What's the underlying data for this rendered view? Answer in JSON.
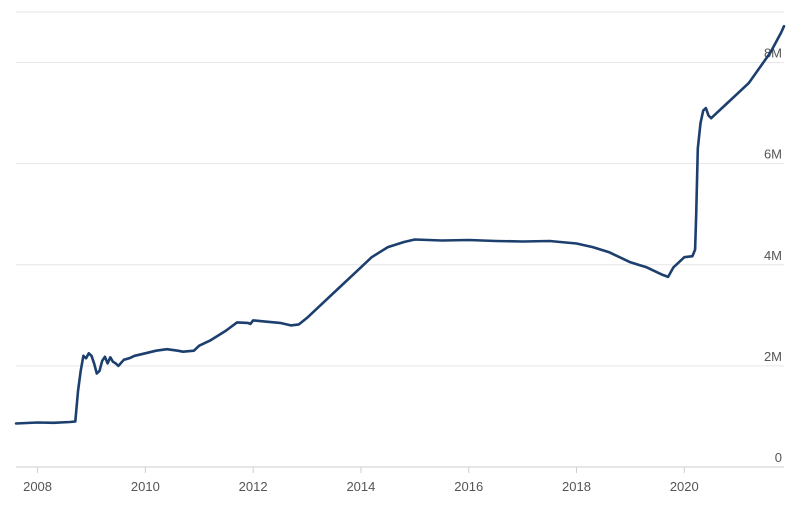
{
  "chart_data": {
    "type": "line",
    "title": "",
    "xlabel": "",
    "ylabel": "",
    "xlim": [
      2007.6,
      2021.85
    ],
    "ylim": [
      0,
      9000000
    ],
    "grid": true,
    "x_ticks": [
      {
        "value": 2008,
        "label": "2008"
      },
      {
        "value": 2010,
        "label": "2010"
      },
      {
        "value": 2012,
        "label": "2012"
      },
      {
        "value": 2014,
        "label": "2014"
      },
      {
        "value": 2016,
        "label": "2016"
      },
      {
        "value": 2018,
        "label": "2018"
      },
      {
        "value": 2020,
        "label": "2020"
      }
    ],
    "y_ticks": [
      {
        "value": 0,
        "label": "0"
      },
      {
        "value": 2000000,
        "label": "2M"
      },
      {
        "value": 4000000,
        "label": "4M"
      },
      {
        "value": 6000000,
        "label": "6M"
      },
      {
        "value": 8000000,
        "label": "8M"
      }
    ],
    "colors": {
      "line": "#1d3f6e"
    },
    "series": [
      {
        "x": [
          2007.6,
          2008.0,
          2008.3,
          2008.6,
          2008.7,
          2008.75,
          2008.8,
          2008.85,
          2008.9,
          2008.95,
          2009.0,
          2009.05,
          2009.1,
          2009.15,
          2009.2,
          2009.25,
          2009.3,
          2009.35,
          2009.4,
          2009.45,
          2009.5,
          2009.6,
          2009.7,
          2009.8,
          2010.0,
          2010.2,
          2010.4,
          2010.6,
          2010.7,
          2010.9,
          2011.0,
          2011.2,
          2011.5,
          2011.7,
          2011.9,
          2011.95,
          2012.0,
          2012.2,
          2012.5,
          2012.7,
          2012.85,
          2013.0,
          2013.3,
          2013.6,
          2013.9,
          2014.2,
          2014.5,
          2014.8,
          2015.0,
          2015.5,
          2016.0,
          2016.5,
          2017.0,
          2017.5,
          2018.0,
          2018.3,
          2018.6,
          2019.0,
          2019.3,
          2019.6,
          2019.7,
          2019.8,
          2019.9,
          2020.0,
          2020.15,
          2020.2,
          2020.22,
          2020.25,
          2020.3,
          2020.35,
          2020.4,
          2020.45,
          2020.5,
          2020.6,
          2020.8,
          2021.0,
          2021.2,
          2021.4,
          2021.6,
          2021.8,
          2021.85
        ],
        "values": [
          860000,
          880000,
          875000,
          890000,
          900000,
          1500000,
          1900000,
          2200000,
          2150000,
          2250000,
          2200000,
          2050000,
          1850000,
          1900000,
          2100000,
          2180000,
          2050000,
          2170000,
          2080000,
          2050000,
          2000000,
          2120000,
          2150000,
          2200000,
          2250000,
          2300000,
          2330000,
          2300000,
          2280000,
          2300000,
          2400000,
          2500000,
          2700000,
          2860000,
          2850000,
          2830000,
          2900000,
          2880000,
          2850000,
          2800000,
          2820000,
          2950000,
          3250000,
          3550000,
          3850000,
          4150000,
          4350000,
          4450000,
          4500000,
          4480000,
          4490000,
          4470000,
          4460000,
          4470000,
          4420000,
          4350000,
          4250000,
          4050000,
          3950000,
          3800000,
          3760000,
          3950000,
          4050000,
          4150000,
          4170000,
          4300000,
          5000000,
          6300000,
          6800000,
          7050000,
          7100000,
          6950000,
          6900000,
          7000000,
          7200000,
          7400000,
          7600000,
          7900000,
          8200000,
          8600000,
          8720000
        ]
      }
    ]
  }
}
